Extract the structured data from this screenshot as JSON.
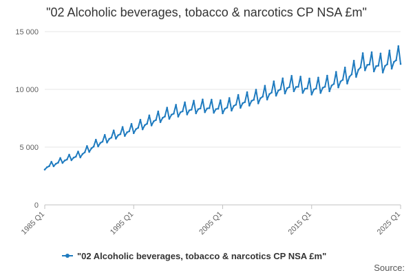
{
  "chart_data": {
    "type": "line",
    "title": "\"02 Alcoholic beverages, tobacco & narcotics CP NSA £m\"",
    "xlabel": "",
    "ylabel": "",
    "x_ticks": [
      "1985 Q1",
      "1995 Q1",
      "2005 Q1",
      "2015 Q1",
      "2025 Q1"
    ],
    "y_ticks": [
      "0",
      "5 000",
      "10 000",
      "15 000"
    ],
    "y_tick_values": [
      0,
      5000,
      10000,
      15000
    ],
    "ylim": [
      0,
      15000
    ],
    "x_range": [
      "1985 Q1",
      "2025 Q1"
    ],
    "grid": "horizontal",
    "legend_position": "bottom",
    "color": "#1f7bbf",
    "series": [
      {
        "name": "\"02 Alcoholic beverages, tobacco & narcotics CP NSA £m\"",
        "color": "#1f7bbf",
        "anchors_year_value": [
          [
            1985,
            3200
          ],
          [
            1987,
            3800
          ],
          [
            1989,
            4300
          ],
          [
            1991,
            5300
          ],
          [
            1993,
            6000
          ],
          [
            1995,
            6500
          ],
          [
            1997,
            7200
          ],
          [
            1999,
            7800
          ],
          [
            2001,
            8200
          ],
          [
            2003,
            8400
          ],
          [
            2005,
            8300
          ],
          [
            2007,
            8800
          ],
          [
            2009,
            9200
          ],
          [
            2011,
            9900
          ],
          [
            2013,
            10300
          ],
          [
            2015,
            10000
          ],
          [
            2017,
            10300
          ],
          [
            2019,
            11000
          ],
          [
            2021,
            12200
          ],
          [
            2023,
            12000
          ],
          [
            2025,
            12700
          ]
        ]
      }
    ]
  },
  "legend": {
    "label": "\"02 Alcoholic beverages, tobacco & narcotics CP NSA £m\""
  },
  "footer": {
    "source": "Source:"
  }
}
